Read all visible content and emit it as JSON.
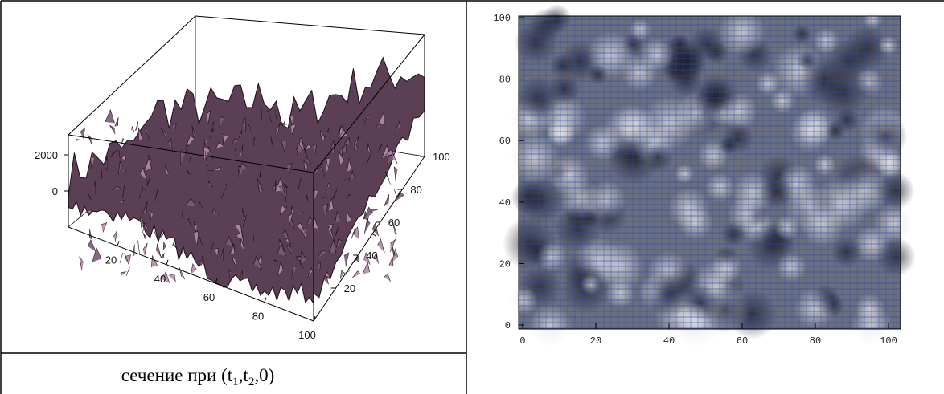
{
  "left_panel": {
    "z_ticks": [
      0,
      2000
    ],
    "x_ticks": [
      20,
      40,
      60,
      80,
      100
    ],
    "y_ticks": [
      20,
      40,
      60,
      80,
      100
    ],
    "caption": {
      "main": "сечение при (t",
      "sub1": "1",
      "mid": ",t",
      "sub2": "2",
      "end": ",0)"
    }
  },
  "right_panel": {
    "x_ticks": [
      0,
      20,
      40,
      60,
      80,
      100
    ],
    "y_ticks": [
      0,
      20,
      40,
      60,
      80,
      100
    ]
  }
}
